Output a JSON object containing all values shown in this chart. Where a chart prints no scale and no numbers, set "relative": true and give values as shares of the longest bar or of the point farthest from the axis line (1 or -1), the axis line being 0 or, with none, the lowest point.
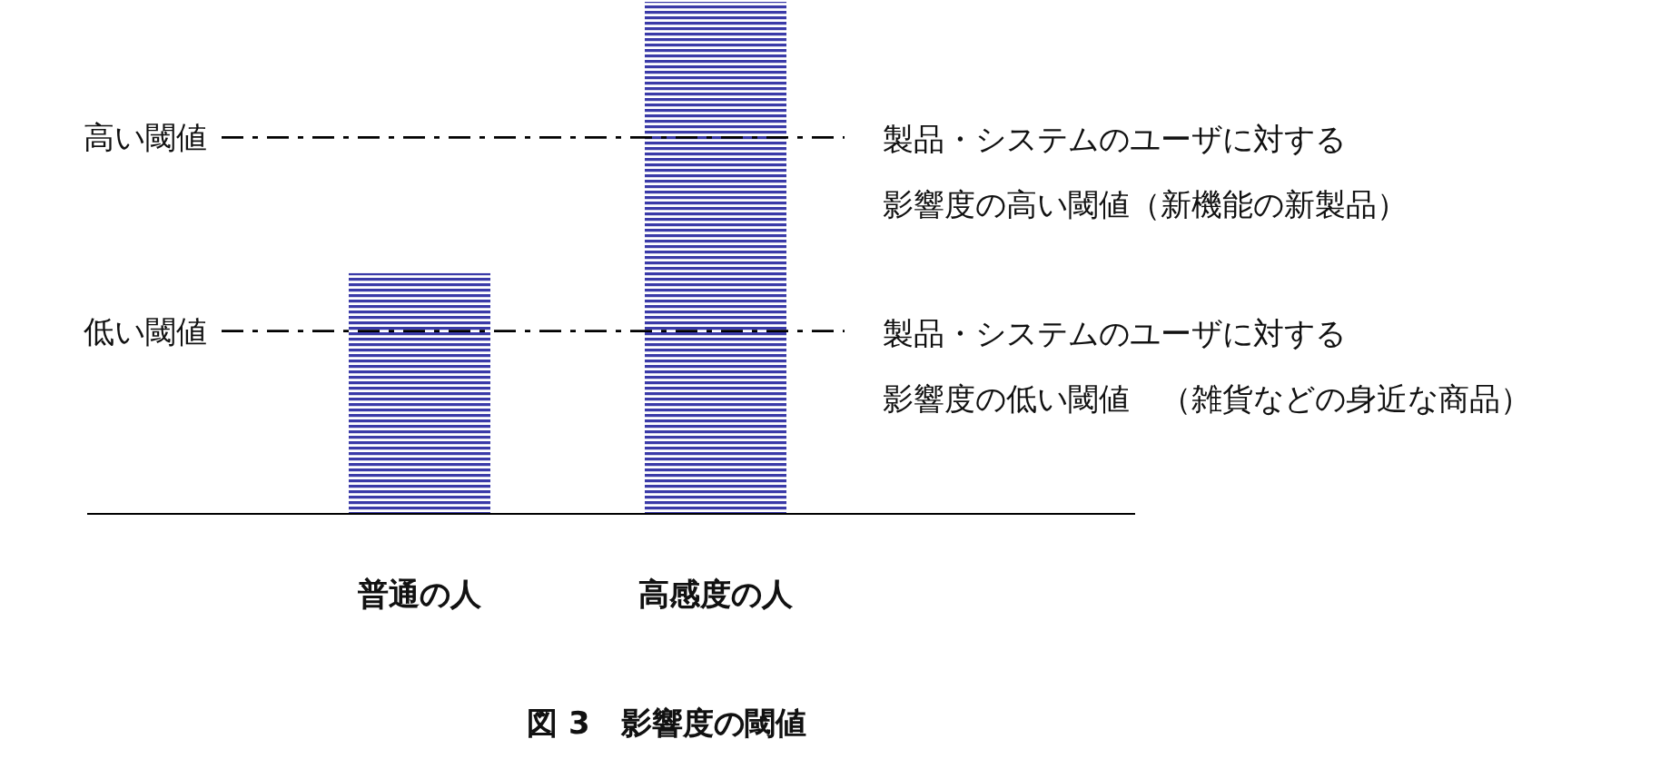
{
  "chart_data": {
    "type": "bar",
    "title": "図 3　影響度の閾値",
    "categories": [
      "普通の人",
      "高感度の人"
    ],
    "values": [
      0.47,
      1
    ],
    "color": "#3a3aa8",
    "relative": true,
    "ref_lines": [
      {
        "axis": "y",
        "value": 0.735,
        "label": "高い閾値",
        "color": "#000000",
        "line_style": "dashdot"
      },
      {
        "axis": "y",
        "value": 0.357,
        "label": "低い閾値",
        "color": "#000000",
        "line_style": "dashdot"
      }
    ],
    "annotations": [
      "製品・システムのユーザに対する",
      "影響度の高い閾値（新機能の新製品）",
      "製品・システムのユーザに対する",
      "影響度の低い閾値　（雑貨などの身近な商品）"
    ]
  }
}
